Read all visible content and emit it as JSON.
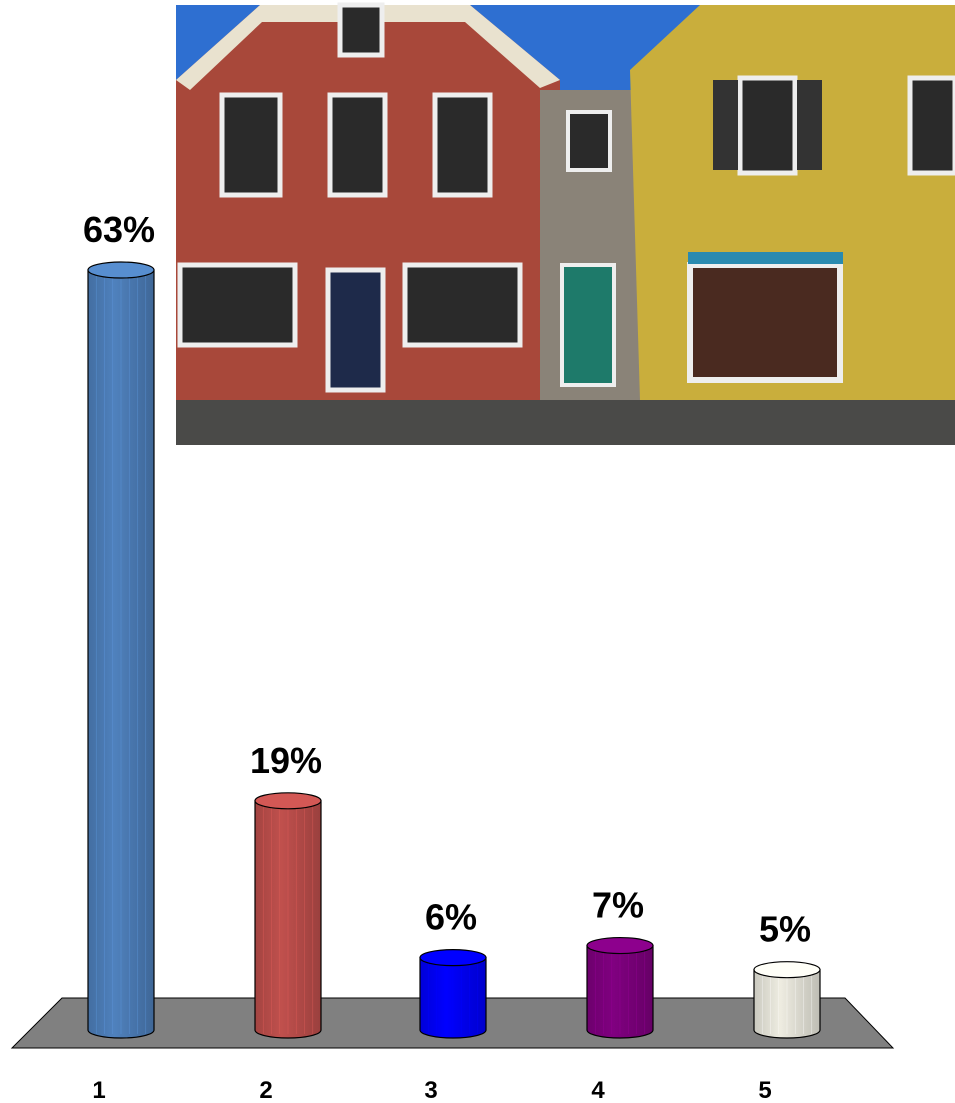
{
  "chart_data": {
    "type": "bar",
    "categories": [
      "1",
      "2",
      "3",
      "4",
      "5"
    ],
    "values": [
      63,
      19,
      6,
      7,
      5
    ],
    "value_labels": [
      "63%",
      "19%",
      "6%",
      "7%",
      "5%"
    ],
    "colors": [
      "#4f81bd",
      "#c0504d",
      "#0000ff",
      "#800080",
      "#eeece1"
    ]
  }
}
